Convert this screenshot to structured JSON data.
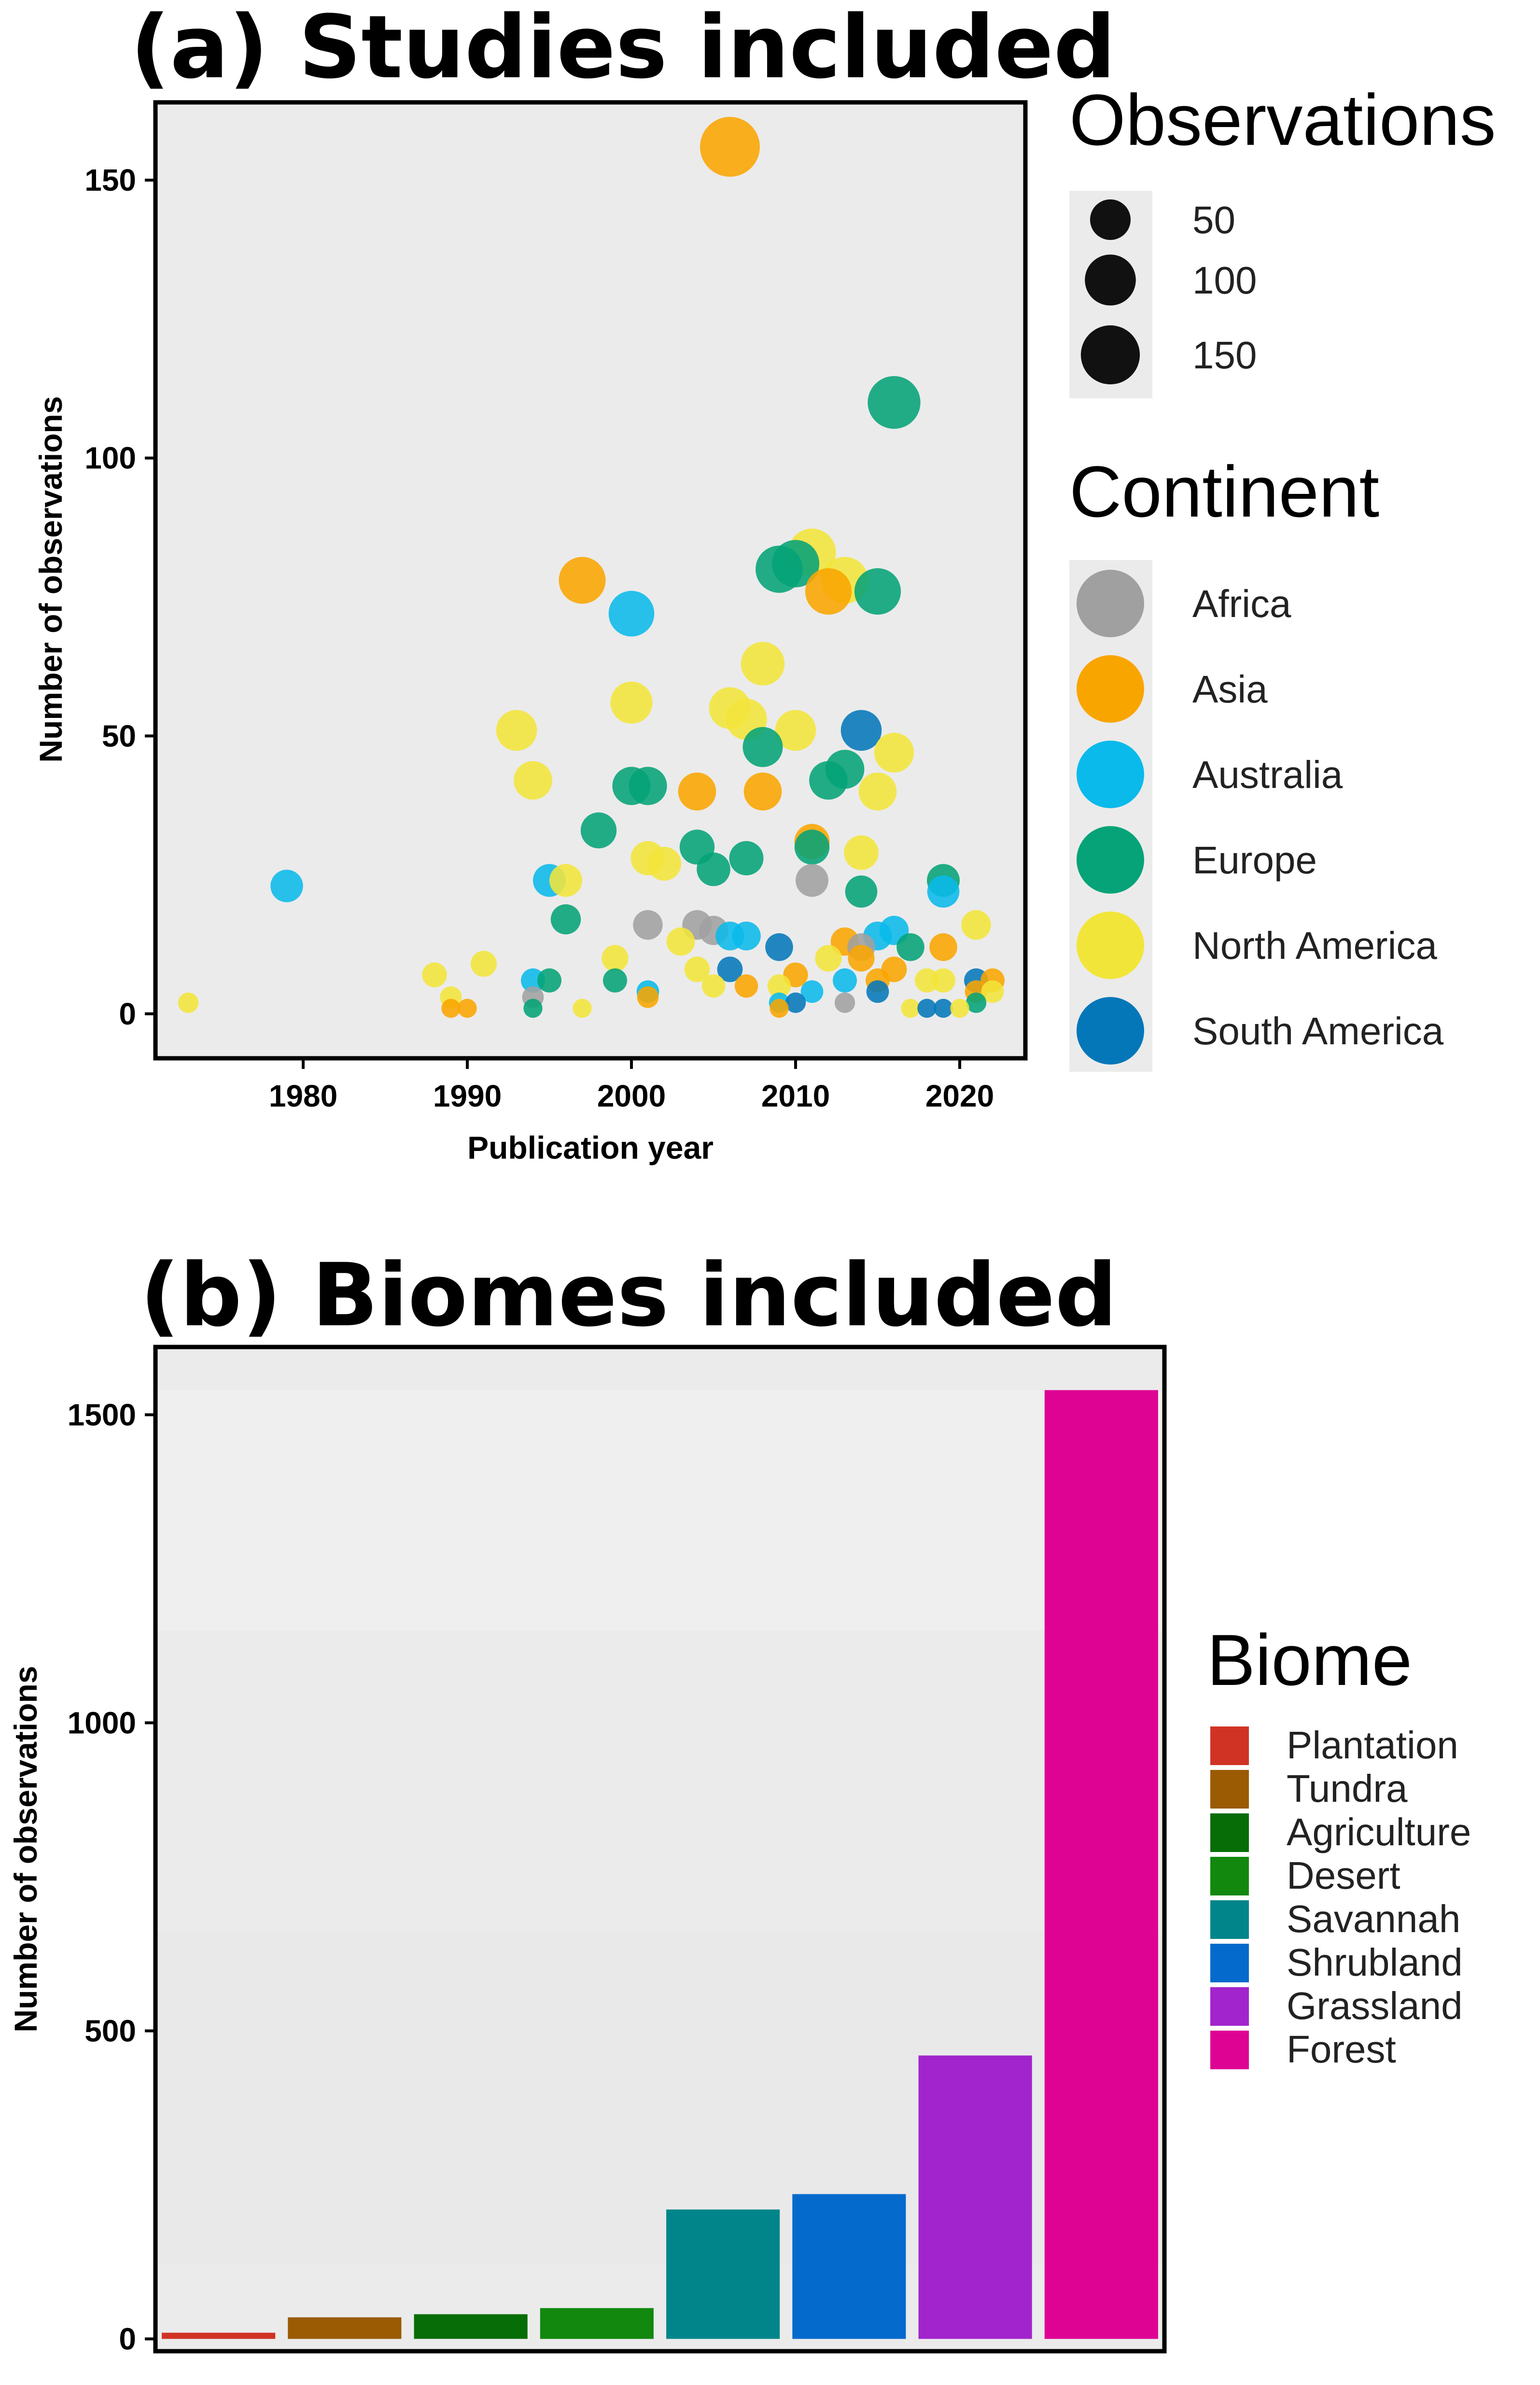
{
  "chart_data": [
    {
      "type": "scatter",
      "title": "(a) Studies included",
      "xlabel": "Publication year",
      "ylabel": "Number of observations",
      "xlim": [
        1971,
        2024
      ],
      "ylim": [
        -8,
        164
      ],
      "x_ticks": [
        1980,
        1990,
        2000,
        2010,
        2020
      ],
      "y_ticks": [
        0,
        50,
        100,
        150
      ],
      "size_legend": {
        "title": "Observations",
        "breaks": [
          50,
          100,
          150
        ]
      },
      "color_legend": {
        "title": "Continent",
        "items": [
          {
            "name": "Africa",
            "color": "#A0A0A0"
          },
          {
            "name": "Asia",
            "color": "#F9A500"
          },
          {
            "name": "Australia",
            "color": "#0ABAEB"
          },
          {
            "name": "Europe",
            "color": "#05A377"
          },
          {
            "name": "North America",
            "color": "#F2E53A"
          },
          {
            "name": "South America",
            "color": "#0477B9"
          }
        ]
      },
      "points": [
        {
          "x": 1973,
          "y": 2,
          "continent": "North America"
        },
        {
          "x": 1979,
          "y": 23,
          "continent": "Australia"
        },
        {
          "x": 1988,
          "y": 7,
          "continent": "North America"
        },
        {
          "x": 1989,
          "y": 3,
          "continent": "North America"
        },
        {
          "x": 1989,
          "y": 1,
          "continent": "Asia"
        },
        {
          "x": 1990,
          "y": 1,
          "continent": "Asia"
        },
        {
          "x": 1991,
          "y": 9,
          "continent": "North America"
        },
        {
          "x": 1993,
          "y": 51,
          "continent": "North America"
        },
        {
          "x": 1994,
          "y": 42,
          "continent": "North America"
        },
        {
          "x": 1994,
          "y": 6,
          "continent": "Australia"
        },
        {
          "x": 1994,
          "y": 3,
          "continent": "Africa"
        },
        {
          "x": 1994,
          "y": 1,
          "continent": "Europe"
        },
        {
          "x": 1995,
          "y": 24,
          "continent": "Australia"
        },
        {
          "x": 1995,
          "y": 6,
          "continent": "Europe"
        },
        {
          "x": 1996,
          "y": 24,
          "continent": "North America"
        },
        {
          "x": 1996,
          "y": 17,
          "continent": "Europe"
        },
        {
          "x": 1997,
          "y": 78,
          "continent": "Asia"
        },
        {
          "x": 1997,
          "y": 1,
          "continent": "North America"
        },
        {
          "x": 1998,
          "y": 33,
          "continent": "Europe"
        },
        {
          "x": 1999,
          "y": 10,
          "continent": "North America"
        },
        {
          "x": 1999,
          "y": 6,
          "continent": "Europe"
        },
        {
          "x": 2000,
          "y": 72,
          "continent": "Australia"
        },
        {
          "x": 2000,
          "y": 56,
          "continent": "North America"
        },
        {
          "x": 2000,
          "y": 41,
          "continent": "Europe"
        },
        {
          "x": 2001,
          "y": 41,
          "continent": "Europe"
        },
        {
          "x": 2001,
          "y": 28,
          "continent": "North America"
        },
        {
          "x": 2001,
          "y": 16,
          "continent": "Africa"
        },
        {
          "x": 2001,
          "y": 4,
          "continent": "Australia"
        },
        {
          "x": 2001,
          "y": 3,
          "continent": "Asia"
        },
        {
          "x": 2002,
          "y": 27,
          "continent": "North America"
        },
        {
          "x": 2003,
          "y": 13,
          "continent": "North America"
        },
        {
          "x": 2004,
          "y": 40,
          "continent": "Asia"
        },
        {
          "x": 2004,
          "y": 30,
          "continent": "Europe"
        },
        {
          "x": 2004,
          "y": 16,
          "continent": "Africa"
        },
        {
          "x": 2004,
          "y": 8,
          "continent": "North America"
        },
        {
          "x": 2005,
          "y": 26,
          "continent": "Europe"
        },
        {
          "x": 2005,
          "y": 15,
          "continent": "Africa"
        },
        {
          "x": 2005,
          "y": 5,
          "continent": "North America"
        },
        {
          "x": 2006,
          "y": 156,
          "continent": "Asia"
        },
        {
          "x": 2006,
          "y": 55,
          "continent": "North America"
        },
        {
          "x": 2006,
          "y": 14,
          "continent": "Australia"
        },
        {
          "x": 2006,
          "y": 8,
          "continent": "South America"
        },
        {
          "x": 2007,
          "y": 53,
          "continent": "North America"
        },
        {
          "x": 2007,
          "y": 28,
          "continent": "Europe"
        },
        {
          "x": 2007,
          "y": 14,
          "continent": "Australia"
        },
        {
          "x": 2007,
          "y": 5,
          "continent": "Asia"
        },
        {
          "x": 2008,
          "y": 63,
          "continent": "North America"
        },
        {
          "x": 2008,
          "y": 48,
          "continent": "Europe"
        },
        {
          "x": 2008,
          "y": 40,
          "continent": "Asia"
        },
        {
          "x": 2009,
          "y": 80,
          "continent": "Europe"
        },
        {
          "x": 2009,
          "y": 12,
          "continent": "South America"
        },
        {
          "x": 2009,
          "y": 5,
          "continent": "North America"
        },
        {
          "x": 2009,
          "y": 2,
          "continent": "Australia"
        },
        {
          "x": 2009,
          "y": 1,
          "continent": "Asia"
        },
        {
          "x": 2010,
          "y": 81,
          "continent": "Europe"
        },
        {
          "x": 2010,
          "y": 51,
          "continent": "North America"
        },
        {
          "x": 2010,
          "y": 7,
          "continent": "Asia"
        },
        {
          "x": 2010,
          "y": 2,
          "continent": "South America"
        },
        {
          "x": 2011,
          "y": 83,
          "continent": "North America"
        },
        {
          "x": 2011,
          "y": 31,
          "continent": "Asia"
        },
        {
          "x": 2011,
          "y": 30,
          "continent": "Europe"
        },
        {
          "x": 2011,
          "y": 24,
          "continent": "Africa"
        },
        {
          "x": 2011,
          "y": 4,
          "continent": "Australia"
        },
        {
          "x": 2012,
          "y": 76,
          "continent": "Asia"
        },
        {
          "x": 2012,
          "y": 42,
          "continent": "Europe"
        },
        {
          "x": 2012,
          "y": 10,
          "continent": "North America"
        },
        {
          "x": 2013,
          "y": 78,
          "continent": "North America"
        },
        {
          "x": 2013,
          "y": 44,
          "continent": "Europe"
        },
        {
          "x": 2013,
          "y": 13,
          "continent": "Asia"
        },
        {
          "x": 2013,
          "y": 6,
          "continent": "Australia"
        },
        {
          "x": 2013,
          "y": 2,
          "continent": "Africa"
        },
        {
          "x": 2014,
          "y": 51,
          "continent": "South America"
        },
        {
          "x": 2014,
          "y": 29,
          "continent": "North America"
        },
        {
          "x": 2014,
          "y": 22,
          "continent": "Europe"
        },
        {
          "x": 2014,
          "y": 12,
          "continent": "Africa"
        },
        {
          "x": 2014,
          "y": 10,
          "continent": "Asia"
        },
        {
          "x": 2015,
          "y": 76,
          "continent": "Europe"
        },
        {
          "x": 2015,
          "y": 40,
          "continent": "North America"
        },
        {
          "x": 2015,
          "y": 14,
          "continent": "Australia"
        },
        {
          "x": 2015,
          "y": 6,
          "continent": "Asia"
        },
        {
          "x": 2015,
          "y": 4,
          "continent": "South America"
        },
        {
          "x": 2016,
          "y": 110,
          "continent": "Europe"
        },
        {
          "x": 2016,
          "y": 47,
          "continent": "North America"
        },
        {
          "x": 2016,
          "y": 15,
          "continent": "Australia"
        },
        {
          "x": 2016,
          "y": 8,
          "continent": "Asia"
        },
        {
          "x": 2017,
          "y": 12,
          "continent": "Europe"
        },
        {
          "x": 2017,
          "y": 1,
          "continent": "North America"
        },
        {
          "x": 2018,
          "y": 6,
          "continent": "North America"
        },
        {
          "x": 2018,
          "y": 1,
          "continent": "South America"
        },
        {
          "x": 2019,
          "y": 24,
          "continent": "Europe"
        },
        {
          "x": 2019,
          "y": 22,
          "continent": "Australia"
        },
        {
          "x": 2019,
          "y": 12,
          "continent": "Asia"
        },
        {
          "x": 2019,
          "y": 6,
          "continent": "North America"
        },
        {
          "x": 2019,
          "y": 1,
          "continent": "South America"
        },
        {
          "x": 2020,
          "y": 1,
          "continent": "North America"
        },
        {
          "x": 2021,
          "y": 16,
          "continent": "North America"
        },
        {
          "x": 2021,
          "y": 6,
          "continent": "South America"
        },
        {
          "x": 2021,
          "y": 4,
          "continent": "Asia"
        },
        {
          "x": 2021,
          "y": 2,
          "continent": "Europe"
        },
        {
          "x": 2022,
          "y": 6,
          "continent": "Asia"
        },
        {
          "x": 2022,
          "y": 4,
          "continent": "North America"
        }
      ]
    },
    {
      "type": "bar",
      "title": "(b) Biomes included",
      "xlabel": "",
      "ylabel": "Number of observations",
      "ylim": [
        -20,
        1610
      ],
      "y_ticks": [
        0,
        500,
        1000,
        1500
      ],
      "categories": [
        "Plantation",
        "Tundra",
        "Agriculture",
        "Desert",
        "Savannah",
        "Shrubland",
        "Grassland",
        "Forest"
      ],
      "values": [
        10,
        35,
        40,
        50,
        210,
        235,
        460,
        1540
      ],
      "colors": [
        "#D03324",
        "#9A5B03",
        "#066D07",
        "#12880F",
        "#02858A",
        "#046ACC",
        "#A124CC",
        "#DE0393"
      ],
      "legend": {
        "title": "Biome",
        "items": [
          {
            "name": "Plantation",
            "color": "#D03324"
          },
          {
            "name": "Tundra",
            "color": "#9A5B03"
          },
          {
            "name": "Agriculture",
            "color": "#066D07"
          },
          {
            "name": "Desert",
            "color": "#12880F"
          },
          {
            "name": "Savannah",
            "color": "#02858A"
          },
          {
            "name": "Shrubland",
            "color": "#046ACC"
          },
          {
            "name": "Grassland",
            "color": "#A124CC"
          },
          {
            "name": "Forest",
            "color": "#DE0393"
          }
        ]
      }
    }
  ]
}
